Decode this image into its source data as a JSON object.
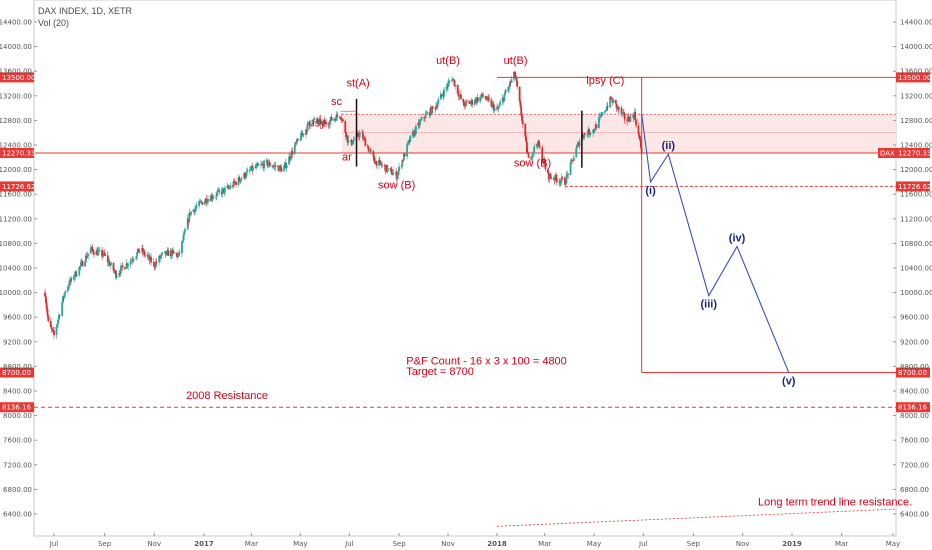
{
  "header": {
    "title": "DAX INDEX, 1D, XETR",
    "volume": "Vol (20)"
  },
  "colors": {
    "up": "#26a69a",
    "down": "#d32f2f",
    "red": "#e53935",
    "wave": "#3f51b5",
    "band": "#fbe3e3",
    "wave_label": "#1a237e"
  },
  "chart_data": {
    "type": "candlestick",
    "title": "DAX INDEX, 1D, XETR",
    "ylim": [
      6200,
      14600
    ],
    "x_ticks": [
      "Jul",
      "Sep",
      "Nov",
      "2017",
      "Mar",
      "May",
      "Jul",
      "Sep",
      "Nov",
      "2018",
      "Mar",
      "May",
      "Jul",
      "Sep",
      "Nov",
      "2019",
      "Mar",
      "May"
    ],
    "y_ticks": [
      "14400.00",
      "14000.00",
      "13600.00",
      "13200.00",
      "12800.00",
      "12400.00",
      "12000.00",
      "11600.00",
      "11200.00",
      "10800.00",
      "10400.00",
      "10000.00",
      "9600.00",
      "9200.00",
      "8800.00",
      "8400.00",
      "8000.00",
      "7600.00",
      "7200.00",
      "6800.00",
      "6400.00"
    ],
    "price_levels": [
      {
        "label": "13500.00",
        "value": 13500
      },
      {
        "label": "12270.33",
        "value": 12270.33
      },
      {
        "label": "11726.62",
        "value": 11726.62
      },
      {
        "label": "8700.00",
        "value": 8700
      },
      {
        "label": "8136.16",
        "value": 8136.16
      }
    ],
    "current_label": "DAX",
    "price_path": [
      [
        "2016-06-20",
        10000
      ],
      [
        "2016-06-24",
        9500
      ],
      [
        "2016-07-01",
        9300
      ],
      [
        "2016-07-15",
        10050
      ],
      [
        "2016-08-01",
        10400
      ],
      [
        "2016-08-15",
        10700
      ],
      [
        "2016-09-01",
        10600
      ],
      [
        "2016-09-15",
        10300
      ],
      [
        "2016-10-01",
        10500
      ],
      [
        "2016-10-15",
        10700
      ],
      [
        "2016-11-01",
        10450
      ],
      [
        "2016-11-10",
        10600
      ],
      [
        "2016-11-20",
        10650
      ],
      [
        "2016-12-01",
        10600
      ],
      [
        "2016-12-15",
        11300
      ],
      [
        "2017-01-01",
        11500
      ],
      [
        "2017-02-01",
        11700
      ],
      [
        "2017-03-01",
        12000
      ],
      [
        "2017-03-20",
        12100
      ],
      [
        "2017-04-10",
        12000
      ],
      [
        "2017-04-25",
        12400
      ],
      [
        "2017-05-15",
        12800
      ],
      [
        "2017-06-01",
        12750
      ],
      [
        "2017-06-20",
        12900
      ],
      [
        "2017-07-01",
        12400
      ],
      [
        "2017-07-15",
        12600
      ],
      [
        "2017-08-01",
        12150
      ],
      [
        "2017-08-29",
        11900
      ],
      [
        "2017-09-15",
        12500
      ],
      [
        "2017-10-01",
        12850
      ],
      [
        "2017-10-15",
        13000
      ],
      [
        "2017-11-06",
        13500
      ],
      [
        "2017-11-20",
        13050
      ],
      [
        "2017-12-01",
        13100
      ],
      [
        "2017-12-15",
        13200
      ],
      [
        "2018-01-01",
        12950
      ],
      [
        "2018-01-23",
        13560
      ],
      [
        "2018-02-09",
        12150
      ],
      [
        "2018-02-20",
        12450
      ],
      [
        "2018-03-05",
        11900
      ],
      [
        "2018-03-26",
        11800
      ],
      [
        "2018-04-15",
        12550
      ],
      [
        "2018-05-01",
        12650
      ],
      [
        "2018-05-22",
        13150
      ],
      [
        "2018-06-10",
        12800
      ],
      [
        "2018-06-20",
        12900
      ],
      [
        "2018-06-29",
        12300
      ]
    ],
    "forecast_waves": [
      {
        "label": "(i)",
        "date": "2018-07-10",
        "value": 11800
      },
      {
        "label": "(ii)",
        "date": "2018-08-01",
        "value": 12250
      },
      {
        "label": "(iii)",
        "date": "2018-09-20",
        "value": 9950
      },
      {
        "label": "(iv)",
        "date": "2018-10-25",
        "value": 10750
      },
      {
        "label": "(v)",
        "date": "2018-12-28",
        "value": 8700
      }
    ],
    "annotations": [
      {
        "text": "psy",
        "date": "2017-05-22",
        "value": 12700
      },
      {
        "text": "sc",
        "date": "2017-06-15",
        "value": 13050
      },
      {
        "text": "st(A)",
        "date": "2017-07-12",
        "value": 13350
      },
      {
        "text": "ar",
        "date": "2017-06-28",
        "value": 12150
      },
      {
        "text": "sow (B)",
        "date": "2017-08-29",
        "value": 11690
      },
      {
        "text": "ut(B)",
        "date": "2017-11-01",
        "value": 13720
      },
      {
        "text": "ut(B)",
        "date": "2018-01-24",
        "value": 13720
      },
      {
        "text": "sow (B)",
        "date": "2018-02-14",
        "value": 12050
      },
      {
        "text": "lpsy (C)",
        "date": "2018-05-15",
        "value": 13390
      },
      {
        "text": "P&F Count - 16 x 3 x 100 = 4800",
        "date": "2017-09-10",
        "value": 8830
      },
      {
        "text": "Target = 8700",
        "date": "2017-09-10",
        "value": 8660
      },
      {
        "text": "2008 Resistance",
        "date": "2016-12-10",
        "value": 8270
      },
      {
        "text": "Long term trend line resistance.",
        "date": "2018-11-20",
        "value": 6540
      }
    ]
  }
}
